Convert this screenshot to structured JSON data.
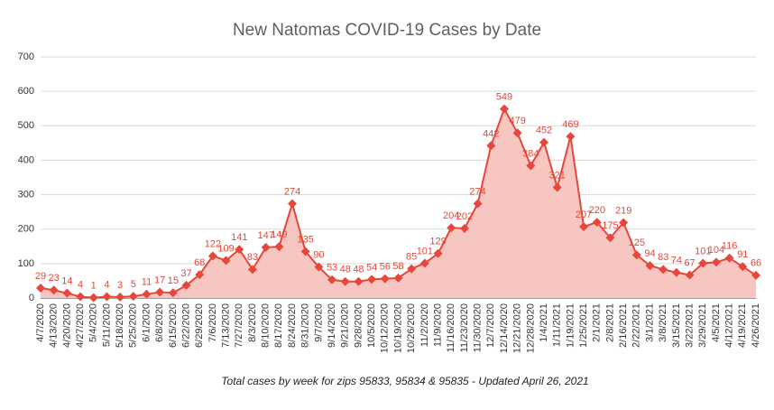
{
  "chart_data": {
    "type": "area",
    "title": "New Natomas COVID-19 Cases by Date",
    "subtitle": "Total cases by week for zips 95833, 95834 & 95835 - Updated April 26, 2021",
    "categories": [
      "4/7/2020",
      "4/13/2020",
      "4/20/2020",
      "4/27/2020",
      "5/4/2020",
      "5/11/2020",
      "5/18/2020",
      "5/25/2020",
      "6/1/2020",
      "6/8/2020",
      "6/15/2020",
      "6/22/2020",
      "6/29/2020",
      "7/6/2020",
      "7/13/2020",
      "7/27/2020",
      "8/3/2020",
      "8/10/2020",
      "8/17/2020",
      "8/24/2020",
      "8/31/2020",
      "9/7/2020",
      "9/14/2020",
      "9/21/2020",
      "9/28/2020",
      "10/5/2020",
      "10/12/2020",
      "10/19/2020",
      "10/26/2020",
      "11/2/2020",
      "11/9/2020",
      "11/16/2020",
      "11/23/2020",
      "11/30/2020",
      "12/7/2020",
      "12/14/2020",
      "12/21/2020",
      "12/28/2020",
      "1/4/2021",
      "1/11/2021",
      "1/19/2021",
      "1/25/2021",
      "2/1/2021",
      "2/8/2021",
      "2/16/2021",
      "2/22/2021",
      "3/1/2021",
      "3/8/2021",
      "3/15/2021",
      "3/22/2021",
      "3/29/2021",
      "4/5/2021",
      "4/12/2021",
      "4/19/2021",
      "4/26/2021"
    ],
    "values": [
      29,
      23,
      14,
      4,
      1,
      4,
      3,
      5,
      11,
      17,
      15,
      37,
      68,
      122,
      109,
      141,
      83,
      147,
      149,
      274,
      135,
      90,
      53,
      48,
      48,
      54,
      56,
      58,
      85,
      101,
      129,
      204,
      202,
      274,
      442,
      549,
      479,
      384,
      452,
      321,
      469,
      207,
      220,
      175,
      219,
      125,
      94,
      83,
      74,
      67,
      101,
      104,
      116,
      91,
      66
    ],
    "color": "#e5473a",
    "area_color": "#f8c6c1",
    "ylim": [
      0,
      700
    ],
    "yticks": [
      0,
      100,
      200,
      300,
      400,
      500,
      600,
      700
    ],
    "grid": true,
    "data_labels": true
  }
}
